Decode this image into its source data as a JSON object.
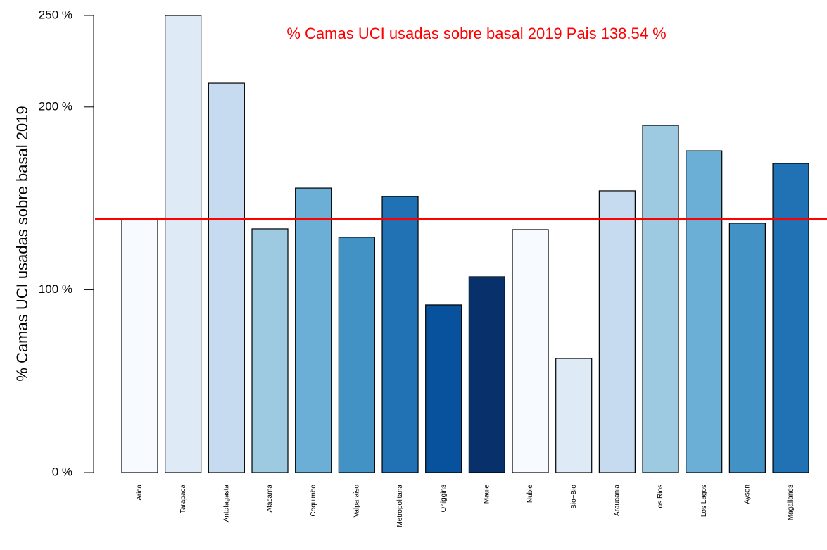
{
  "chart_data": {
    "type": "bar",
    "title": "% Camas UCI usadas sobre basal 2019 Pais 138.54 %",
    "title_color": "#ff0000",
    "ylabel": "% Camas UCI usadas sobre basal 2019",
    "categories": [
      "Arica",
      "Tarapaca",
      "Antofagasta",
      "Atacama",
      "Coquimbo",
      "Valparaiso",
      "Metropolitana",
      "Ohiggins",
      "Maule",
      "Nuble",
      "Bio−Bio",
      "Araucania",
      "Los Rios",
      "Los Lagos",
      "Aysen",
      "Magallanes"
    ],
    "values": [
      139,
      250,
      213,
      133.3,
      155.6,
      128.7,
      151,
      91.7,
      107.1,
      132.9,
      62.4,
      154.1,
      189.9,
      176,
      136.4,
      169.1
    ],
    "colors": [
      "#f7fbff",
      "#deebf7",
      "#c6dbef",
      "#9ecae1",
      "#6baed6",
      "#4292c6",
      "#2171b5",
      "#08519c",
      "#08306b",
      "#f7fbff",
      "#deebf7",
      "#c6dbef",
      "#9ecae1",
      "#6baed6",
      "#4292c6",
      "#2171b5"
    ],
    "hline": 138.54,
    "hline_color": "#ff0000",
    "ylim": [
      0,
      250
    ],
    "yticks": [
      {
        "value": 0,
        "label": "0 %"
      },
      {
        "value": 100,
        "label": "100 %"
      },
      {
        "value": 200,
        "label": "200 %"
      },
      {
        "value": 250,
        "label": "250 %"
      }
    ]
  }
}
